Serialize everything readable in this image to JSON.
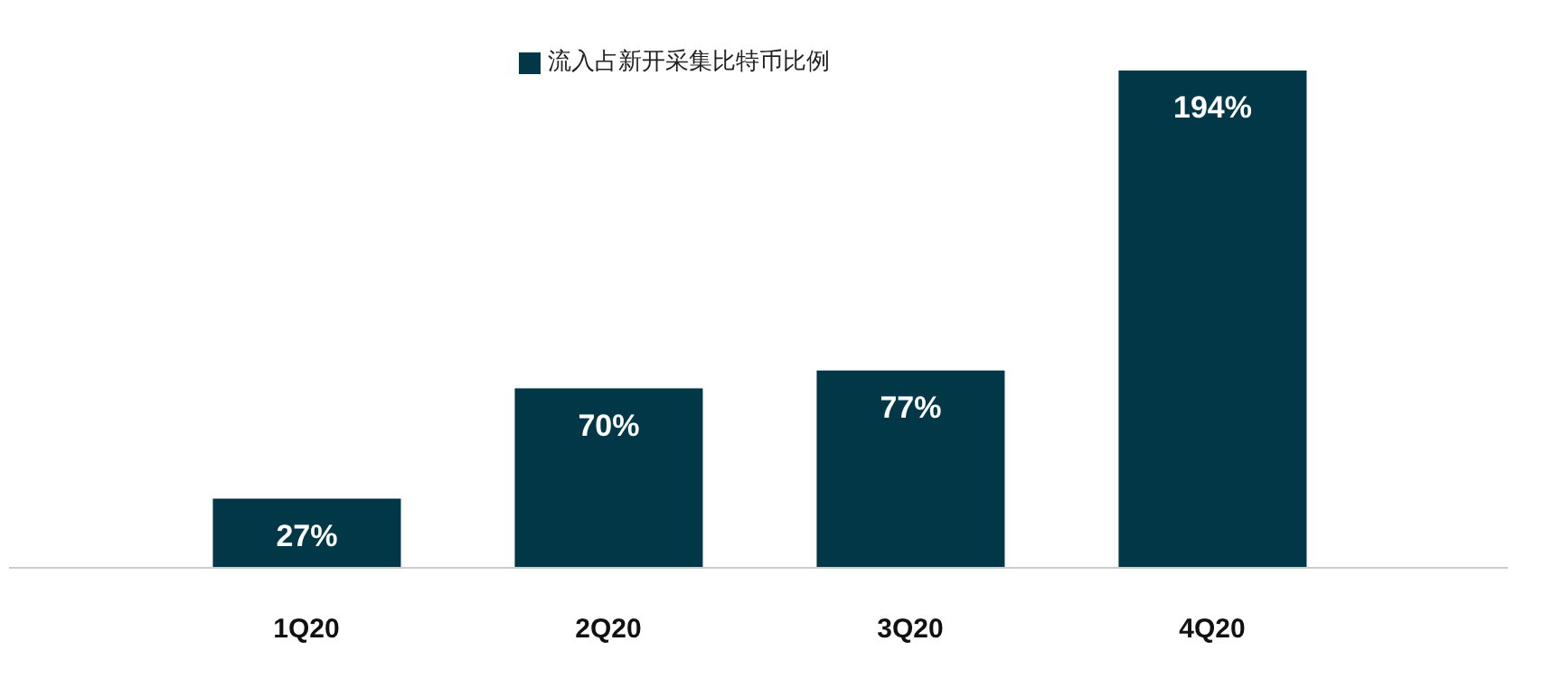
{
  "chart_data": {
    "type": "bar",
    "categories": [
      "1Q20",
      "2Q20",
      "3Q20",
      "4Q20"
    ],
    "series": [
      {
        "name": "流入占新开采集比特币比例",
        "color": "#023747",
        "values": [
          27,
          70,
          77,
          194
        ],
        "value_labels": [
          "27%",
          "70%",
          "77%",
          "194%"
        ]
      }
    ],
    "legend": "top",
    "grid": false
  }
}
